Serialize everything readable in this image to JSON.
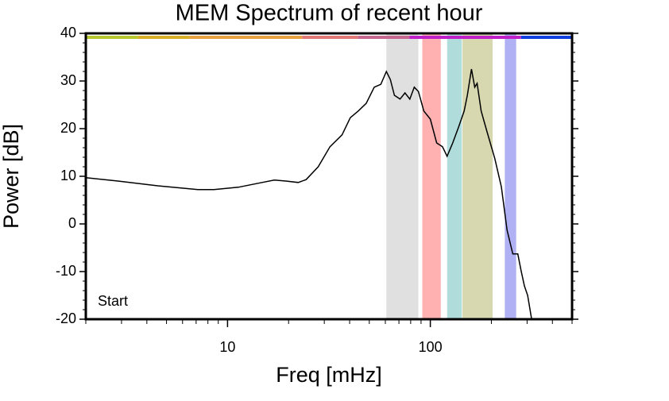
{
  "chart_data": {
    "type": "line",
    "title": "MEM Spectrum of recent hour",
    "xlabel": "Freq [mHz]",
    "ylabel": "Power [dB]",
    "xscale": "log",
    "xlim": [
      2,
      500
    ],
    "xticks": [
      10,
      100
    ],
    "xminorticks": [
      2,
      3,
      4,
      5,
      6,
      7,
      8,
      9,
      20,
      30,
      40,
      50,
      60,
      70,
      80,
      90,
      200,
      300,
      400,
      500
    ],
    "ylim": [
      -20,
      40
    ],
    "yticks": [
      -20,
      -10,
      0,
      10,
      20,
      30,
      40
    ],
    "yminorticks": [
      -18,
      -16,
      -14,
      -12,
      -8,
      -6,
      -4,
      -2,
      2,
      4,
      6,
      8,
      12,
      14,
      16,
      18,
      22,
      24,
      26,
      28,
      32,
      34,
      36,
      38
    ],
    "annotation": "Start",
    "bands": [
      {
        "xmin": 60.7,
        "xmax": 87.3,
        "color": "#e0e0e0"
      },
      {
        "xmin": 91.3,
        "xmax": 112.6,
        "color": "#ffb0b0"
      },
      {
        "xmin": 121,
        "xmax": 143,
        "color": "#b0dcdc"
      },
      {
        "xmin": 144,
        "xmax": 203,
        "color": "#d8d8b0"
      },
      {
        "xmin": 233,
        "xmax": 265,
        "color": "#b0b0f4"
      }
    ],
    "top_bar": [
      {
        "xmin": 2,
        "xmax": 3.6,
        "color": "#b8c830"
      },
      {
        "xmin": 3.6,
        "xmax": 6.5,
        "color": "#d8b028"
      },
      {
        "xmin": 6.5,
        "xmax": 23.3,
        "color": "#e8a040"
      },
      {
        "xmin": 23.3,
        "xmax": 44,
        "color": "#e07878"
      },
      {
        "xmin": 44,
        "xmax": 79,
        "color": "#c86890"
      },
      {
        "xmin": 79,
        "xmax": 280,
        "color": "#c020c8"
      },
      {
        "xmin": 280,
        "xmax": 500,
        "color": "#1040e0"
      }
    ],
    "series": [
      {
        "name": "MEM spectrum",
        "color": "#000000",
        "x": [
          2.0,
          2.88,
          4.53,
          7.14,
          8.56,
          11.3,
          14.8,
          17.0,
          19.4,
          22.3,
          24.4,
          28.0,
          32.0,
          36.7,
          40.3,
          44.1,
          48.3,
          52.9,
          57.0,
          60.7,
          63.5,
          66.5,
          70.9,
          75.0,
          79.2,
          83.3,
          87.3,
          92.9,
          100,
          107.5,
          114.8,
          121,
          129,
          137.7,
          146.8,
          152.3,
          159.5,
          165.6,
          170.1,
          178.1,
          189.9,
          208,
          224,
          239,
          255,
          270,
          280,
          291,
          302,
          316
        ],
        "values": [
          9.7,
          9.0,
          8.0,
          7.2,
          7.2,
          7.7,
          8.7,
          9.2,
          9.0,
          8.7,
          9.3,
          12.0,
          16.2,
          18.7,
          22.3,
          23.7,
          25.3,
          28.7,
          29.3,
          32.0,
          30.3,
          27.0,
          26.2,
          27.5,
          26.2,
          28.7,
          27.8,
          23.7,
          22.0,
          17.0,
          16.2,
          14.2,
          17.0,
          20.3,
          23.7,
          27.0,
          32.5,
          28.7,
          29.5,
          23.7,
          19.5,
          13.7,
          7.8,
          -1.3,
          -6.3,
          -6.3,
          -9.7,
          -13.0,
          -15.0,
          -20.0
        ]
      }
    ]
  }
}
